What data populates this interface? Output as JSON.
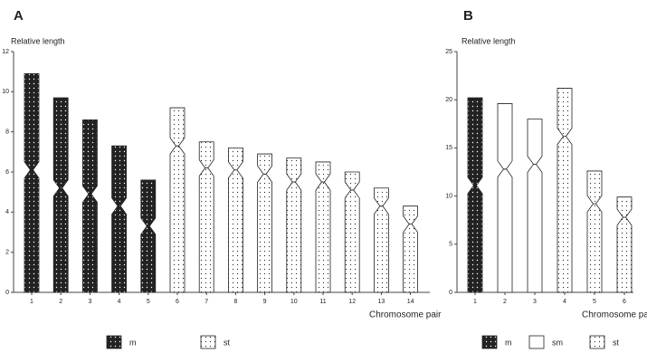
{
  "chart_data": [
    {
      "type": "idiogram",
      "title": "A",
      "y_label": "Relative length",
      "x_label": "Chromosome pair",
      "categories": [
        "1",
        "2",
        "3",
        "4",
        "5",
        "6",
        "7",
        "8",
        "9",
        "10",
        "11",
        "12",
        "13",
        "14"
      ],
      "ylim": [
        0,
        12
      ],
      "yticks": [
        0,
        2,
        4,
        6,
        8,
        10,
        12
      ],
      "series": [
        {
          "name": "m",
          "pattern": "dark",
          "values": [
            6.1,
            5.2,
            4.9,
            4.3,
            3.3,
            null,
            null,
            null,
            null,
            null,
            null,
            null,
            null,
            null
          ],
          "short_arm": [
            4.8,
            4.5,
            3.7,
            3.0,
            2.3,
            null,
            null,
            null,
            null,
            null,
            null,
            null,
            null,
            null
          ]
        },
        {
          "name": "st",
          "pattern": "dotted",
          "values": [
            null,
            null,
            null,
            null,
            null,
            7.3,
            6.2,
            6.1,
            5.9,
            5.5,
            5.5,
            5.1,
            4.3,
            3.4
          ],
          "short_arm": [
            null,
            null,
            null,
            null,
            null,
            1.9,
            1.3,
            1.1,
            1.0,
            1.2,
            1.0,
            0.9,
            0.9,
            0.9
          ]
        }
      ]
    },
    {
      "type": "idiogram",
      "title": "B",
      "y_label": "Relative length",
      "x_label": "Chromosome pai",
      "categories": [
        "1",
        "2",
        "3",
        "4",
        "5",
        "6"
      ],
      "ylim": [
        0,
        25
      ],
      "yticks": [
        0,
        5,
        10,
        15,
        20,
        25
      ],
      "series": [
        {
          "name": "m",
          "pattern": "dark",
          "values": [
            11.1,
            null,
            null,
            null,
            null,
            null
          ],
          "short_arm": [
            9.1,
            null,
            null,
            null,
            null,
            null
          ]
        },
        {
          "name": "sm",
          "pattern": "plain",
          "values": [
            null,
            12.8,
            13.3,
            null,
            null,
            null
          ],
          "short_arm": [
            null,
            6.8,
            4.7,
            null,
            null,
            null
          ]
        },
        {
          "name": "st",
          "pattern": "dotted",
          "values": [
            null,
            null,
            null,
            16.2,
            9.2,
            7.8
          ],
          "short_arm": [
            null,
            null,
            null,
            5.0,
            3.4,
            2.1
          ]
        }
      ]
    }
  ]
}
